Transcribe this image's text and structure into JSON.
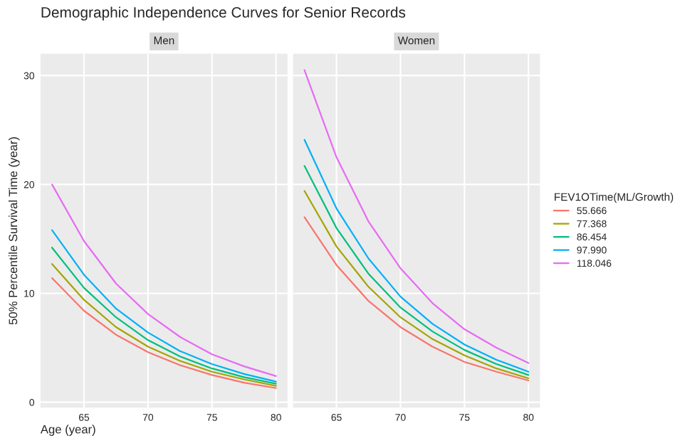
{
  "chart_data": [
    {
      "type": "line",
      "title": "Demographic Independence Curves for Senior Records",
      "subtitle": "Men",
      "xlabel": "Age (year)",
      "ylabel": "50% Percentile Survival Time (year)",
      "x": [
        62.5,
        65,
        67.5,
        70,
        72.5,
        75,
        77.5,
        80
      ],
      "xlim": [
        61.6,
        80.9
      ],
      "xticks": [
        65,
        70,
        75,
        80
      ],
      "ylim": [
        -0.5,
        32
      ],
      "yticks": [
        0,
        10,
        20,
        30
      ],
      "grid": true,
      "series": [
        {
          "color": "#f8766d",
          "values": [
            11.4,
            8.4,
            6.2,
            4.6,
            3.4,
            2.5,
            1.8,
            1.3
          ]
        },
        {
          "color": "#a3a500",
          "values": [
            12.7,
            9.4,
            6.9,
            5.1,
            3.8,
            2.8,
            2.1,
            1.5
          ]
        },
        {
          "color": "#00bf7d",
          "values": [
            14.2,
            10.5,
            7.8,
            5.7,
            4.2,
            3.1,
            2.3,
            1.7
          ]
        },
        {
          "color": "#00b0f6",
          "values": [
            15.8,
            11.7,
            8.6,
            6.4,
            4.7,
            3.5,
            2.6,
            1.9
          ]
        },
        {
          "color": "#e76bf3",
          "values": [
            20,
            14.8,
            10.9,
            8.1,
            6.0,
            4.4,
            3.3,
            2.4
          ]
        }
      ]
    },
    {
      "type": "line",
      "subtitle": "Women",
      "legend_title": "FEV1OTime(ML/Growth)",
      "legend": "right",
      "tick_labels": "x",
      "x": [
        62.5,
        65,
        67.5,
        70,
        72.5,
        75,
        77.5,
        80
      ],
      "xlim": [
        61.6,
        80.9
      ],
      "xticks": [
        65,
        70,
        75,
        80
      ],
      "ylim": [
        -0.5,
        32
      ],
      "yticks": [
        0,
        10,
        20,
        30
      ],
      "grid": true,
      "series": [
        {
          "name": "55.666",
          "color": "#f8766d",
          "values": [
            17.0,
            12.6,
            9.3,
            6.9,
            5.1,
            3.7,
            2.8,
            2.0
          ]
        },
        {
          "name": "77.368",
          "color": "#a3a500",
          "values": [
            19.4,
            14.3,
            10.6,
            7.8,
            5.8,
            4.3,
            3.1,
            2.2
          ]
        },
        {
          "name": "86.454",
          "color": "#00bf7d",
          "values": [
            21.7,
            16.0,
            11.8,
            8.7,
            6.5,
            4.8,
            3.5,
            2.5
          ]
        },
        {
          "name": "97.990",
          "color": "#00b0f6",
          "values": [
            24.1,
            17.8,
            13.2,
            9.7,
            7.2,
            5.3,
            3.9,
            2.8
          ]
        },
        {
          "name": "118.046",
          "color": "#e76bf3",
          "values": [
            30.5,
            22.5,
            16.6,
            12.3,
            9.1,
            6.7,
            5.0,
            3.6
          ]
        }
      ]
    }
  ]
}
